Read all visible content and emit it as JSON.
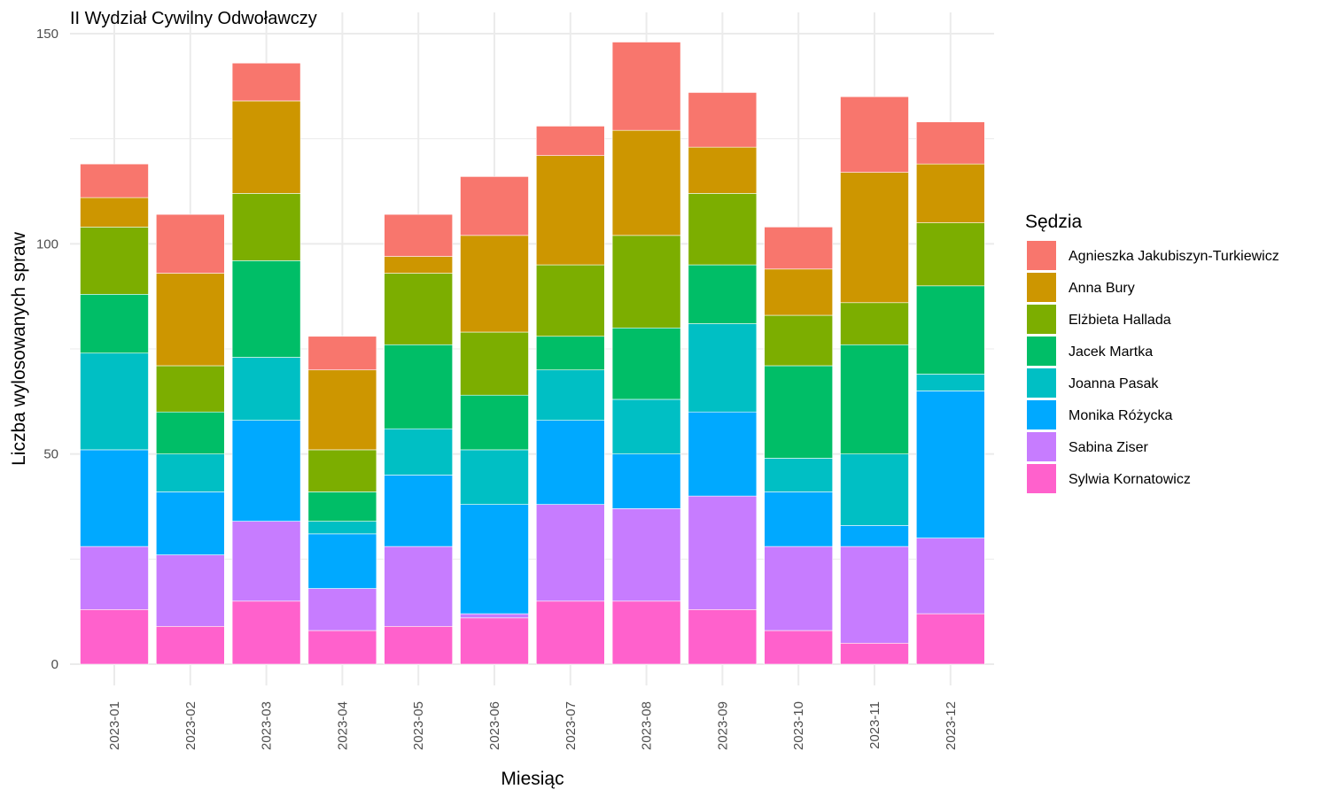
{
  "chart_data": {
    "type": "bar",
    "stacked": true,
    "title": "II Wydział Cywilny Odwoławczy",
    "xlabel": "Miesiąc",
    "ylabel": "Liczba wylosowanych spraw",
    "ylim": [
      0,
      150
    ],
    "yticks": [
      0,
      50,
      100,
      150
    ],
    "grid": true,
    "legend_position": "right",
    "legend_title": "Sędzia",
    "categories": [
      "2023-01",
      "2023-02",
      "2023-03",
      "2023-04",
      "2023-05",
      "2023-06",
      "2023-07",
      "2023-08",
      "2023-09",
      "2023-10",
      "2023-11",
      "2023-12"
    ],
    "series": [
      {
        "name": "Agnieszka Jakubiszyn-Turkiewicz",
        "color": "#F8766D",
        "values": [
          8,
          14,
          9,
          8,
          10,
          14,
          7,
          21,
          13,
          10,
          18,
          10
        ]
      },
      {
        "name": "Anna Bury",
        "color": "#CD9600",
        "values": [
          7,
          22,
          22,
          19,
          4,
          23,
          26,
          25,
          11,
          11,
          31,
          14
        ]
      },
      {
        "name": "Elżbieta Hallada",
        "color": "#7CAE00",
        "values": [
          16,
          11,
          16,
          10,
          17,
          15,
          17,
          22,
          17,
          12,
          10,
          15
        ]
      },
      {
        "name": "Jacek Martka",
        "color": "#00BE67",
        "values": [
          14,
          10,
          23,
          7,
          20,
          13,
          8,
          17,
          14,
          22,
          26,
          21
        ]
      },
      {
        "name": "Joanna Pasak",
        "color": "#00BFC4",
        "values": [
          23,
          9,
          15,
          3,
          11,
          13,
          12,
          13,
          21,
          8,
          17,
          4
        ]
      },
      {
        "name": "Monika Różycka",
        "color": "#00A9FF",
        "values": [
          23,
          15,
          24,
          13,
          17,
          26,
          20,
          13,
          20,
          13,
          5,
          35
        ]
      },
      {
        "name": "Sabina Ziser",
        "color": "#C77CFF",
        "values": [
          15,
          17,
          19,
          10,
          19,
          1,
          23,
          22,
          27,
          20,
          23,
          18
        ]
      },
      {
        "name": "Sylwia Kornatowicz",
        "color": "#FF61CC",
        "values": [
          13,
          9,
          15,
          8,
          9,
          11,
          15,
          15,
          13,
          8,
          5,
          12
        ]
      }
    ]
  }
}
